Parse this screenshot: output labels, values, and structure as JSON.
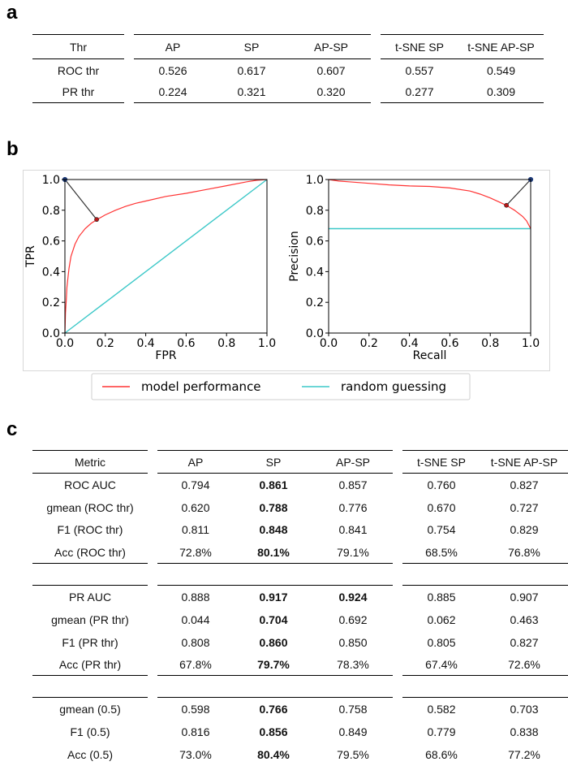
{
  "panel_labels": {
    "a": "a",
    "b": "b",
    "c": "c"
  },
  "table_a": {
    "corner": "Thr",
    "columns": [
      "AP",
      "SP",
      "AP-SP",
      "t-SNE SP",
      "t-SNE AP-SP"
    ],
    "rows": [
      {
        "label": "ROC thr",
        "values": [
          "0.526",
          "0.617",
          "0.607",
          "0.557",
          "0.549"
        ]
      },
      {
        "label": "PR thr",
        "values": [
          "0.224",
          "0.321",
          "0.320",
          "0.277",
          "0.309"
        ]
      }
    ]
  },
  "table_c": {
    "corner": "Metric",
    "columns": [
      "AP",
      "SP",
      "AP-SP",
      "t-SNE SP",
      "t-SNE AP-SP"
    ],
    "groups": [
      {
        "rows": [
          {
            "label": "ROC AUC",
            "values": [
              "0.794",
              "0.861",
              "0.857",
              "0.760",
              "0.827"
            ],
            "bold": [
              1
            ]
          },
          {
            "label": "gmean (ROC thr)",
            "values": [
              "0.620",
              "0.788",
              "0.776",
              "0.670",
              "0.727"
            ],
            "bold": [
              1
            ]
          },
          {
            "label": "F1 (ROC thr)",
            "values": [
              "0.811",
              "0.848",
              "0.841",
              "0.754",
              "0.829"
            ],
            "bold": [
              1
            ]
          },
          {
            "label": "Acc (ROC thr)",
            "values": [
              "72.8%",
              "80.1%",
              "79.1%",
              "68.5%",
              "76.8%"
            ],
            "bold": [
              1
            ]
          }
        ]
      },
      {
        "rows": [
          {
            "label": "PR AUC",
            "values": [
              "0.888",
              "0.917",
              "0.924",
              "0.885",
              "0.907"
            ],
            "bold": [
              1,
              2
            ]
          },
          {
            "label": "gmean (PR thr)",
            "values": [
              "0.044",
              "0.704",
              "0.692",
              "0.062",
              "0.463"
            ],
            "bold": [
              1
            ]
          },
          {
            "label": "F1 (PR thr)",
            "values": [
              "0.808",
              "0.860",
              "0.850",
              "0.805",
              "0.827"
            ],
            "bold": [
              1
            ]
          },
          {
            "label": "Acc (PR thr)",
            "values": [
              "67.8%",
              "79.7%",
              "78.3%",
              "67.4%",
              "72.6%"
            ],
            "bold": [
              1
            ]
          }
        ]
      },
      {
        "rows": [
          {
            "label": "gmean (0.5)",
            "values": [
              "0.598",
              "0.766",
              "0.758",
              "0.582",
              "0.703"
            ],
            "bold": [
              1
            ]
          },
          {
            "label": "F1 (0.5)",
            "values": [
              "0.816",
              "0.856",
              "0.849",
              "0.779",
              "0.838"
            ],
            "bold": [
              1
            ]
          },
          {
            "label": "Acc (0.5)",
            "values": [
              "73.0%",
              "80.4%",
              "79.5%",
              "68.6%",
              "77.2%"
            ],
            "bold": [
              1
            ]
          }
        ]
      }
    ]
  },
  "chart_data": [
    {
      "type": "line",
      "xlabel": "FPR",
      "ylabel": "TPR",
      "xlim": [
        0,
        1
      ],
      "ylim": [
        0,
        1
      ],
      "xticks": [
        "0.0",
        "0.2",
        "0.4",
        "0.6",
        "0.8",
        "1.0"
      ],
      "yticks": [
        "0.0",
        "0.2",
        "0.4",
        "0.6",
        "0.8",
        "1.0"
      ],
      "series": [
        {
          "name": "model performance",
          "color": "#ff3333",
          "x": [
            0,
            0.003,
            0.006,
            0.01,
            0.02,
            0.03,
            0.05,
            0.07,
            0.1,
            0.13,
            0.16,
            0.2,
            0.25,
            0.3,
            0.35,
            0.4,
            0.5,
            0.6,
            0.7,
            0.8,
            0.9,
            0.95,
            1.0
          ],
          "y": [
            0,
            0.13,
            0.2,
            0.3,
            0.42,
            0.5,
            0.58,
            0.63,
            0.68,
            0.715,
            0.74,
            0.77,
            0.8,
            0.825,
            0.845,
            0.86,
            0.89,
            0.91,
            0.935,
            0.96,
            0.985,
            0.995,
            1.0
          ]
        },
        {
          "name": "random guessing",
          "color": "#3cc8c8",
          "x": [
            0,
            1
          ],
          "y": [
            0,
            1
          ]
        }
      ],
      "annotations": [
        {
          "kind": "ideal-point",
          "x": 0,
          "y": 1
        },
        {
          "kind": "threshold-point",
          "x": 0.157,
          "y": 0.74
        }
      ]
    },
    {
      "type": "line",
      "xlabel": "Recall",
      "ylabel": "Precision",
      "xlim": [
        0,
        1
      ],
      "ylim": [
        0,
        1
      ],
      "xticks": [
        "0.0",
        "0.2",
        "0.4",
        "0.6",
        "0.8",
        "1.0"
      ],
      "yticks": [
        "0.0",
        "0.2",
        "0.4",
        "0.6",
        "0.8",
        "1.0"
      ],
      "series": [
        {
          "name": "model performance",
          "color": "#ff3333",
          "x": [
            0,
            0.05,
            0.1,
            0.2,
            0.3,
            0.4,
            0.5,
            0.6,
            0.7,
            0.75,
            0.8,
            0.85,
            0.88,
            0.92,
            0.96,
            0.98,
            1.0
          ],
          "y": [
            1.0,
            0.99,
            0.985,
            0.975,
            0.965,
            0.958,
            0.955,
            0.945,
            0.925,
            0.905,
            0.88,
            0.85,
            0.832,
            0.8,
            0.76,
            0.73,
            0.68
          ]
        },
        {
          "name": "random guessing",
          "color": "#3cc8c8",
          "x": [
            0,
            1
          ],
          "y": [
            0.68,
            0.68
          ]
        }
      ],
      "annotations": [
        {
          "kind": "ideal-point",
          "x": 1,
          "y": 1
        },
        {
          "kind": "threshold-point",
          "x": 0.88,
          "y": 0.832
        }
      ]
    }
  ],
  "legend": {
    "items": [
      {
        "label": "model performance",
        "color": "#ff3333"
      },
      {
        "label": "random guessing",
        "color": "#3cc8c8"
      }
    ]
  }
}
